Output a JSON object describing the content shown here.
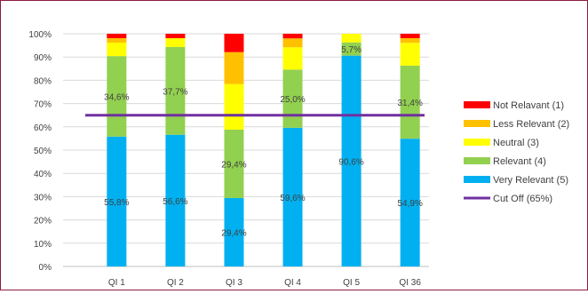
{
  "chart_data": {
    "type": "bar",
    "stacked": true,
    "categories": [
      "QI 1",
      "QI 2",
      "QI 3",
      "QI 4",
      "QI 5",
      "QI 36"
    ],
    "series": [
      {
        "name": "Very Relevant (5)",
        "color": "#00B0F0",
        "values": [
          55.8,
          56.6,
          29.4,
          59.6,
          90.6,
          54.9
        ]
      },
      {
        "name": "Relevant (4)",
        "color": "#92D050",
        "values": [
          34.6,
          37.7,
          29.4,
          25.0,
          5.7,
          31.4
        ]
      },
      {
        "name": "Neutral (3)",
        "color": "#FFFF00",
        "values": [
          5.8,
          3.8,
          19.6,
          9.6,
          3.7,
          9.8
        ]
      },
      {
        "name": "Less Relevant (2)",
        "color": "#FFC000",
        "values": [
          1.9,
          0.0,
          13.7,
          3.8,
          0.0,
          2.0
        ]
      },
      {
        "name": "Not Relavant (1)",
        "color": "#FF0000",
        "values": [
          1.9,
          1.9,
          7.9,
          2.0,
          0.0,
          1.9
        ]
      }
    ],
    "data_labels": [
      {
        "series": "Very Relevant (5)",
        "labels": [
          "55,8%",
          "56,6%",
          "29,4%",
          "59,6%",
          "90,6%",
          "54,9%"
        ]
      },
      {
        "series": "Relevant (4)",
        "labels": [
          "34,6%",
          "37,7%",
          "29,4%",
          "25,0%",
          "5,7%",
          "31,4%"
        ]
      }
    ],
    "cutoff": {
      "name": "Cut Off (65%)",
      "value": 65,
      "color": "#7030A0"
    },
    "y_ticks": [
      "0%",
      "10%",
      "20%",
      "30%",
      "40%",
      "50%",
      "60%",
      "70%",
      "80%",
      "90%",
      "100%"
    ],
    "ylim": [
      0,
      100
    ],
    "grid": true,
    "legend_position": "right",
    "legend_order": [
      "Not Relavant (1)",
      "Less Relevant (2)",
      "Neutral (3)",
      "Relevant (4)",
      "Very Relevant (5)",
      "Cut Off (65%)"
    ],
    "title": "",
    "xlabel": "",
    "ylabel": ""
  }
}
